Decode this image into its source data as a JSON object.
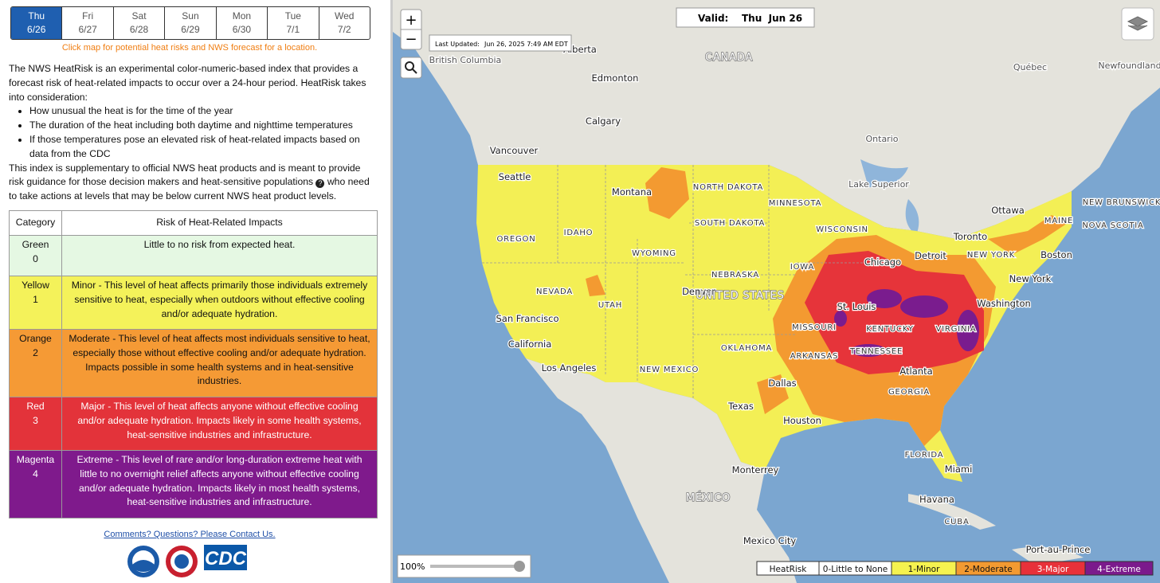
{
  "days": [
    {
      "day": "Thu",
      "date": "6/26"
    },
    {
      "day": "Fri",
      "date": "6/27"
    },
    {
      "day": "Sat",
      "date": "6/28"
    },
    {
      "day": "Sun",
      "date": "6/29"
    },
    {
      "day": "Mon",
      "date": "6/30"
    },
    {
      "day": "Tue",
      "date": "7/1"
    },
    {
      "day": "Wed",
      "date": "7/2"
    }
  ],
  "hint": "Click map for potential heat risks and NWS forecast for a location.",
  "intro": {
    "lead": "The NWS HeatRisk is an experimental color-numeric-based index that provides a forecast risk of heat-related impacts to occur over a 24-hour period. HeatRisk takes into consideration:",
    "bullets": [
      "How unusual the heat is for the time of the year",
      "The duration of the heat including both daytime and nighttime temperatures",
      "If those temperatures pose an elevated risk of heat-related impacts based on data from the CDC"
    ],
    "closing_start": "This index is supplementary to official NWS heat products and is meant to provide risk guidance for those decision makers and heat-sensitive populations",
    "closing_end": "who need to take actions at levels that may be below current NWS heat product levels."
  },
  "table": {
    "headers": [
      "Category",
      "Risk of Heat-Related Impacts"
    ],
    "rows": [
      {
        "category": "Green",
        "level": "0",
        "description": "Little to no risk from expected heat."
      },
      {
        "category": "Yellow",
        "level": "1",
        "description": "Minor - This level of heat affects primarily those individuals extremely sensitive to heat, especially when outdoors without effective cooling and/or adequate hydration."
      },
      {
        "category": "Orange",
        "level": "2",
        "description": "Moderate - This level of heat affects most individuals sensitive to heat, especially those without effective cooling and/or adequate hydration. Impacts possible in some health systems and in heat-sensitive industries."
      },
      {
        "category": "Red",
        "level": "3",
        "description": "Major - This level of heat affects anyone without effective cooling and/or adequate hydration. Impacts likely in some health systems, heat-sensitive industries and infrastructure."
      },
      {
        "category": "Magenta",
        "level": "4",
        "description": "Extreme - This level of rare and/or long-duration extreme heat with little to no overnight relief affects anyone without effective cooling and/or adequate hydration. Impacts likely in most health systems, heat-sensitive industries and infrastructure."
      }
    ]
  },
  "contact": "Comments? Questions? Please Contact Us.",
  "logos": {
    "cdc": "CDC"
  },
  "map": {
    "valid_label": "Valid:",
    "valid_date": "Thu  Jun 26",
    "updated_label": "Last Updated:",
    "updated_time": "Jun 26, 2025 7:49 AM EDT",
    "zoom": "100%",
    "legend": [
      "HeatRisk",
      "0-Little to None",
      "1-Minor",
      "2-Moderate",
      "3-Major",
      "4-Extreme"
    ],
    "labels": [
      "British Columbia",
      "Alberta",
      "CANADA",
      "Edmonton",
      "Calgary",
      "Vancouver",
      "Seattle",
      "Ontario",
      "Québec",
      "Newfoundland",
      "Lake Superior",
      "Montana",
      "NORTH DAKOTA",
      "MINNESOTA",
      "SOUTH DAKOTA",
      "Ottawa",
      "NEW BRUNSWICK",
      "MAINE",
      "NOVA SCOTIA",
      "OREGON",
      "IDAHO",
      "WISCONSIN",
      "Toronto",
      "WYOMING",
      "NEW YORK",
      "Boston",
      "Detroit",
      "Chicago",
      "IOWA",
      "NEBRASKA",
      "New York",
      "NEVADA",
      "Denver",
      "UNITED STATES",
      "UTAH",
      "St. Louis",
      "Washington",
      "San Francisco",
      "MISSOURI",
      "KENTUCKY",
      "VIRGINIA",
      "California",
      "OKLAHOMA",
      "ARKANSAS",
      "TENNESSEE",
      "Los Angeles",
      "NEW MEXICO",
      "Atlanta",
      "Dallas",
      "GEORGIA",
      "Texas",
      "Houston",
      "FLORIDA",
      "Miami",
      "Monterrey",
      "Havana",
      "MÉXICO",
      "CUBA",
      "Mexico City",
      "Port-au-Prince"
    ]
  }
}
